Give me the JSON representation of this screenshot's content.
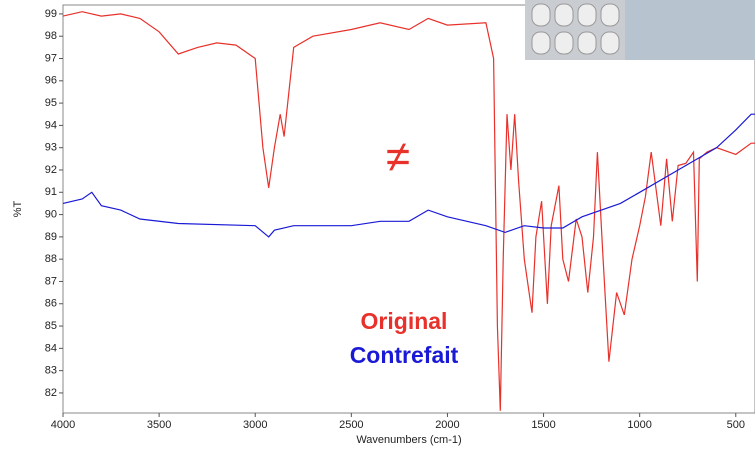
{
  "chart_data": {
    "type": "line",
    "xlabel": "Wavenumbers (cm-1)",
    "ylabel": "%T",
    "annotations": [
      "≠"
    ],
    "xlim": [
      4000,
      400
    ],
    "ylim": [
      81.1,
      99.4
    ],
    "xticks": [
      4000,
      3500,
      3000,
      2500,
      2000,
      1500,
      1000,
      500
    ],
    "yticks": [
      82,
      83,
      84,
      85,
      86,
      87,
      88,
      89,
      90,
      91,
      92,
      93,
      94,
      95,
      96,
      97,
      98,
      99
    ],
    "series": [
      {
        "name": "Original",
        "color": "#e8312a",
        "x": [
          4000,
          3900,
          3800,
          3700,
          3600,
          3500,
          3400,
          3300,
          3200,
          3100,
          3000,
          2960,
          2930,
          2900,
          2870,
          2850,
          2800,
          2700,
          2500,
          2350,
          2200,
          2100,
          2000,
          1800,
          1760,
          1740,
          1725,
          1710,
          1690,
          1670,
          1650,
          1630,
          1600,
          1560,
          1540,
          1510,
          1480,
          1460,
          1420,
          1400,
          1370,
          1330,
          1300,
          1270,
          1240,
          1220,
          1190,
          1160,
          1120,
          1080,
          1040,
          1000,
          970,
          940,
          920,
          890,
          860,
          830,
          800,
          760,
          720,
          700,
          690,
          650,
          600,
          500,
          420,
          400
        ],
        "values": [
          98.9,
          99.1,
          98.9,
          99.0,
          98.8,
          98.2,
          97.2,
          97.5,
          97.7,
          97.6,
          97.0,
          93.0,
          91.2,
          93.0,
          94.5,
          93.5,
          97.5,
          98.0,
          98.3,
          98.6,
          98.3,
          98.8,
          98.5,
          98.6,
          97.0,
          85.0,
          81.2,
          88.0,
          94.5,
          92.0,
          94.5,
          91.5,
          88.0,
          85.6,
          89.0,
          90.6,
          86.0,
          89.5,
          91.3,
          88.0,
          87.0,
          89.8,
          89.0,
          86.5,
          89.0,
          92.8,
          88.0,
          83.4,
          86.5,
          85.5,
          88.0,
          89.5,
          90.8,
          92.8,
          91.5,
          89.5,
          92.5,
          89.7,
          92.2,
          92.3,
          92.8,
          87.0,
          92.5,
          92.8,
          93.0,
          92.7,
          93.2,
          93.2
        ]
      },
      {
        "name": "Contrefait",
        "color": "#1a1ad6",
        "x": [
          4000,
          3900,
          3850,
          3800,
          3700,
          3600,
          3400,
          3000,
          2930,
          2900,
          2800,
          2500,
          2350,
          2200,
          2100,
          2000,
          1800,
          1700,
          1600,
          1500,
          1400,
          1300,
          1100,
          1000,
          800,
          600,
          500,
          420,
          400
        ],
        "values": [
          90.5,
          90.7,
          91.0,
          90.4,
          90.2,
          89.8,
          89.6,
          89.5,
          89.0,
          89.3,
          89.5,
          89.5,
          89.7,
          89.7,
          90.2,
          89.9,
          89.5,
          89.2,
          89.5,
          89.4,
          89.4,
          89.9,
          90.5,
          91.0,
          92.0,
          93.0,
          93.8,
          94.5,
          94.5
        ]
      }
    ]
  }
}
